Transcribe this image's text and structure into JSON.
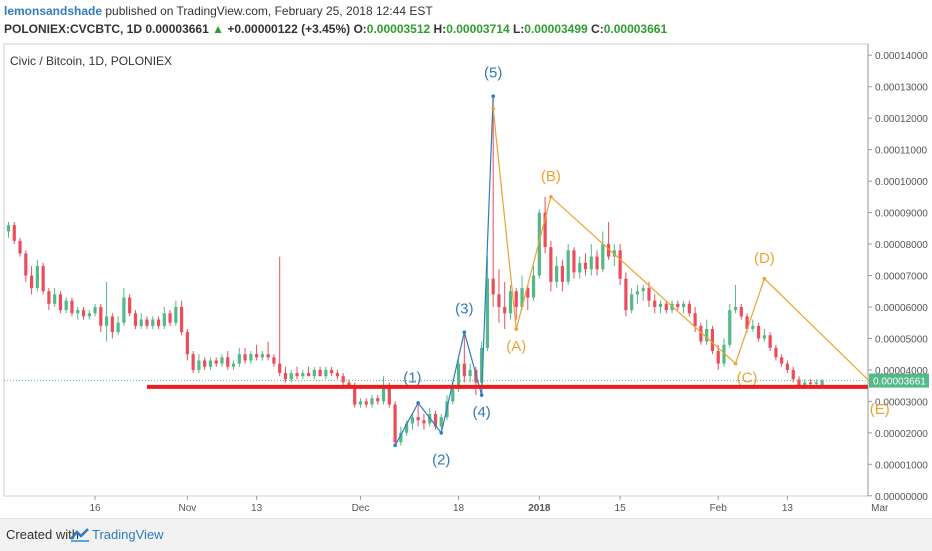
{
  "header": {
    "author": "lemonsandshade",
    "published": "published on TradingView.com, February 25, 2018 12:44 EST",
    "symbol": "POLONIEX:CVCBTC, 1D",
    "last": "0.00003661",
    "change": "+0.00000122 (+3.45%)",
    "o_label": "O:",
    "o": "0.00003512",
    "h_label": "H:",
    "h": "0.00003714",
    "l_label": "L:",
    "l": "0.00003499",
    "c_label": "C:",
    "c": "0.00003661"
  },
  "footer": {
    "created": "Created with",
    "brand": "TradingView"
  },
  "chart_data": {
    "type": "candlestick",
    "title": "Civic / Bitcoin, 1D, POLONIEX",
    "ylim": [
      -7e-08,
      0.00014357
    ],
    "y_ticks": [
      "0.00014000",
      "0.00013000",
      "0.00012000",
      "0.00011000",
      "0.00010000",
      "0.00009000",
      "0.00008000",
      "0.00007000",
      "0.00006000",
      "0.00005000",
      "0.00004000",
      "0.00003000",
      "0.00002000",
      "0.00001000",
      "0.00000000"
    ],
    "x_ticks": [
      {
        "label": "16",
        "day": 15
      },
      {
        "label": "Nov",
        "day": 31
      },
      {
        "label": "13",
        "day": 43
      },
      {
        "label": "Dec",
        "day": 61
      },
      {
        "label": "18",
        "day": 78
      },
      {
        "label": "2018",
        "day": 92
      },
      {
        "label": "15",
        "day": 106
      },
      {
        "label": "Feb",
        "day": 123
      },
      {
        "label": "13",
        "day": 135
      },
      {
        "label": "Mar",
        "day": 151
      }
    ],
    "last_price_label": "0.00003661",
    "colors": {
      "up": "#53b987",
      "down": "#eb4d5c",
      "blue_wave": "#2f7bbf",
      "orange_wave": "#f0a030",
      "support": "#ee1c1c"
    },
    "support_level": 3.46e-05,
    "candles": [
      [
        8.4e-05,
        8.7e-05,
        8.2e-05,
        8.6e-05
      ],
      [
        8.6e-05,
        8.7e-05,
        8e-05,
        8.1e-05
      ],
      [
        8.1e-05,
        8.2e-05,
        7.6e-05,
        7.7e-05
      ],
      [
        7.7e-05,
        7.8e-05,
        6.8e-05,
        7e-05
      ],
      [
        7e-05,
        7.3e-05,
        6.4e-05,
        6.6e-05
      ],
      [
        6.6e-05,
        7.5e-05,
        6.5e-05,
        7.3e-05
      ],
      [
        7.3e-05,
        7.4e-05,
        6.4e-05,
        6.5e-05
      ],
      [
        6.5e-05,
        6.6e-05,
        5.9e-05,
        6.1e-05
      ],
      [
        6.1e-05,
        6.6e-05,
        6e-05,
        6.4e-05
      ],
      [
        6.4e-05,
        6.5e-05,
        5.8e-05,
        5.9e-05
      ],
      [
        5.9e-05,
        6.3e-05,
        5.8e-05,
        6.2e-05
      ],
      [
        6.2e-05,
        6.3e-05,
        5.7e-05,
        5.8e-05
      ],
      [
        5.8e-05,
        6e-05,
        5.6e-05,
        5.9e-05
      ],
      [
        5.9e-05,
        6e-05,
        5.6e-05,
        5.7e-05
      ],
      [
        5.7e-05,
        5.9e-05,
        5.6e-05,
        5.8e-05
      ],
      [
        5.8e-05,
        6.1e-05,
        5.7e-05,
        6e-05
      ],
      [
        6e-05,
        6.1e-05,
        5.2e-05,
        5.4e-05
      ],
      [
        5.4e-05,
        6.8e-05,
        4.9e-05,
        5.7e-05
      ],
      [
        5.7e-05,
        5.8e-05,
        5e-05,
        5.2e-05
      ],
      [
        5.2e-05,
        5.7e-05,
        5.1e-05,
        5.5e-05
      ],
      [
        5.5e-05,
        6.6e-05,
        5.4e-05,
        6.3e-05
      ],
      [
        6.3e-05,
        6.4e-05,
        5.7e-05,
        5.8e-05
      ],
      [
        5.8e-05,
        5.9e-05,
        5.3e-05,
        5.4e-05
      ],
      [
        5.4e-05,
        5.8e-05,
        5.3e-05,
        5.6e-05
      ],
      [
        5.6e-05,
        5.7e-05,
        5.3e-05,
        5.4e-05
      ],
      [
        5.4e-05,
        5.7e-05,
        5.3e-05,
        5.6e-05
      ],
      [
        5.6e-05,
        5.7e-05,
        5.3e-05,
        5.4e-05
      ],
      [
        5.4e-05,
        6e-05,
        5.3e-05,
        5.8e-05
      ],
      [
        5.8e-05,
        5.9e-05,
        5.4e-05,
        5.5e-05
      ],
      [
        5.5e-05,
        6.2e-05,
        5.4e-05,
        6e-05
      ],
      [
        6e-05,
        6.2e-05,
        5.1e-05,
        5.2e-05
      ],
      [
        5.2e-05,
        5.3e-05,
        4.3e-05,
        4.5e-05
      ],
      [
        4.5e-05,
        4.6e-05,
        3.9e-05,
        4e-05
      ],
      [
        4e-05,
        4.5e-05,
        3.9e-05,
        4.3e-05
      ],
      [
        4.3e-05,
        4.4e-05,
        4e-05,
        4.1e-05
      ],
      [
        4.1e-05,
        4.4e-05,
        4e-05,
        4.3e-05
      ],
      [
        4.3e-05,
        4.4e-05,
        4.1e-05,
        4.2e-05
      ],
      [
        4.2e-05,
        4.5e-05,
        4.1e-05,
        4.4e-05
      ],
      [
        4.4e-05,
        4.6e-05,
        4e-05,
        4.1e-05
      ],
      [
        4.1e-05,
        4.3e-05,
        4e-05,
        4.2e-05
      ],
      [
        4.2e-05,
        4.7e-05,
        4.1e-05,
        4.5e-05
      ],
      [
        4.5e-05,
        4.7e-05,
        4.2e-05,
        4.3e-05
      ],
      [
        4.3e-05,
        4.6e-05,
        4.2e-05,
        4.5e-05
      ],
      [
        4.5e-05,
        4.8e-05,
        4.3e-05,
        4.4e-05
      ],
      [
        4.4e-05,
        4.6e-05,
        4.3e-05,
        4.5e-05
      ],
      [
        4.5e-05,
        4.9e-05,
        4.3e-05,
        4.4e-05
      ],
      [
        4.4e-05,
        4.5e-05,
        4.1e-05,
        4.2e-05
      ],
      [
        4.2e-05,
        7.6e-05,
        3.8e-05,
        3.9e-05
      ],
      [
        3.9e-05,
        4.1e-05,
        3.6e-05,
        3.7e-05
      ],
      [
        3.7e-05,
        4e-05,
        3.6e-05,
        3.9e-05
      ],
      [
        3.9e-05,
        4.1e-05,
        3.7e-05,
        3.8e-05
      ],
      [
        3.8e-05,
        4e-05,
        3.7e-05,
        3.9e-05
      ],
      [
        3.9e-05,
        4.1e-05,
        3.8e-05,
        3.8e-05
      ],
      [
        3.8e-05,
        4.1e-05,
        3.7e-05,
        4e-05
      ],
      [
        4e-05,
        4.1e-05,
        3.8e-05,
        3.8e-05
      ],
      [
        3.8e-05,
        4.1e-05,
        3.7e-05,
        4e-05
      ],
      [
        4e-05,
        4.1e-05,
        3.8e-05,
        3.9e-05
      ],
      [
        3.9e-05,
        4e-05,
        3.7e-05,
        3.8e-05
      ],
      [
        3.8e-05,
        3.9e-05,
        3.5e-05,
        3.6e-05
      ],
      [
        3.6e-05,
        3.7e-05,
        3.4e-05,
        3.5e-05
      ],
      [
        3.5e-05,
        3.6e-05,
        2.8e-05,
        2.9e-05
      ],
      [
        2.9e-05,
        3.1e-05,
        2.8e-05,
        3e-05
      ],
      [
        3e-05,
        3.1e-05,
        2.8e-05,
        2.9e-05
      ],
      [
        2.9e-05,
        3.2e-05,
        2.8e-05,
        3.1e-05
      ],
      [
        3.1e-05,
        3.2e-05,
        2.9e-05,
        3e-05
      ],
      [
        3e-05,
        3.8e-05,
        2.9e-05,
        3.5e-05
      ],
      [
        3.5e-05,
        3.6e-05,
        2.8e-05,
        2.9e-05
      ],
      [
        2.9e-05,
        3e-05,
        1.6e-05,
        1.7e-05
      ],
      [
        1.7e-05,
        2.2e-05,
        1.6e-05,
        2e-05
      ],
      [
        2e-05,
        2.4e-05,
        1.9e-05,
        2.3e-05
      ],
      [
        2.3e-05,
        2.6e-05,
        2.1e-05,
        2.5e-05
      ],
      [
        2.5e-05,
        3e-05,
        2.2e-05,
        2.4e-05
      ],
      [
        2.4e-05,
        2.6e-05,
        2.1e-05,
        2.3e-05
      ],
      [
        2.3e-05,
        2.8e-05,
        2.2e-05,
        2.6e-05
      ],
      [
        2.6e-05,
        2.7e-05,
        2.1e-05,
        2.2e-05
      ],
      [
        2.2e-05,
        2.6e-05,
        2.1e-05,
        2.5e-05
      ],
      [
        2.5e-05,
        3.2e-05,
        2.4e-05,
        3e-05
      ],
      [
        3e-05,
        3.6e-05,
        2.9e-05,
        3.4e-05
      ],
      [
        3.4e-05,
        4.4e-05,
        3.3e-05,
        4.2e-05
      ],
      [
        4.2e-05,
        5.2e-05,
        3.6e-05,
        3.8e-05
      ],
      [
        3.8e-05,
        4.2e-05,
        3.6e-05,
        4e-05
      ],
      [
        4e-05,
        4.1e-05,
        3.2e-05,
        3.6e-05
      ],
      [
        3.6e-05,
        4.9e-05,
        3.5e-05,
        4.7e-05
      ],
      [
        4.7e-05,
        7.6e-05,
        4.6e-05,
        6.9e-05
      ],
      [
        6.9e-05,
        0.000127,
        6e-05,
        6.4e-05
      ],
      [
        6.4e-05,
        7.2e-05,
        5.5e-05,
        6e-05
      ],
      [
        6e-05,
        6.8e-05,
        5.3e-05,
        5.8e-05
      ],
      [
        5.8e-05,
        6.7e-05,
        5.6e-05,
        6.5e-05
      ],
      [
        6.5e-05,
        6.6e-05,
        5.6e-05,
        6e-05
      ],
      [
        6e-05,
        7e-05,
        5.9e-05,
        6.6e-05
      ],
      [
        6.6e-05,
        6.7e-05,
        5.9e-05,
        6.3e-05
      ],
      [
        6.3e-05,
        7.3e-05,
        6.2e-05,
        7e-05
      ],
      [
        7e-05,
        9.1e-05,
        6.9e-05,
        9e-05
      ],
      [
        9e-05,
        9.5e-05,
        7.7e-05,
        7.9e-05
      ],
      [
        7.9e-05,
        8.1e-05,
        6.5e-05,
        6.8e-05
      ],
      [
        6.8e-05,
        7.6e-05,
        6.6e-05,
        7.3e-05
      ],
      [
        7.3e-05,
        7.5e-05,
        6.5e-05,
        6.8e-05
      ],
      [
        6.8e-05,
        8e-05,
        6.7e-05,
        7.8e-05
      ],
      [
        7.8e-05,
        7.9e-05,
        6.9e-05,
        7.1e-05
      ],
      [
        7.1e-05,
        7.6e-05,
        6.9e-05,
        7.4e-05
      ],
      [
        7.4e-05,
        7.7e-05,
        7e-05,
        7.2e-05
      ],
      [
        7.2e-05,
        8e-05,
        7e-05,
        7.6e-05
      ],
      [
        7.6e-05,
        7.8e-05,
        7e-05,
        7.2e-05
      ],
      [
        7.2e-05,
        8.4e-05,
        7.1e-05,
        8e-05
      ],
      [
        8e-05,
        8.7e-05,
        7.5e-05,
        7.6e-05
      ],
      [
        7.6e-05,
        8e-05,
        7.3e-05,
        7.8e-05
      ],
      [
        7.8e-05,
        8e-05,
        6.7e-05,
        6.9e-05
      ],
      [
        6.9e-05,
        7.1e-05,
        5.7e-05,
        5.9e-05
      ],
      [
        5.9e-05,
        6.6e-05,
        5.8e-05,
        6.4e-05
      ],
      [
        6.4e-05,
        6.7e-05,
        6.1e-05,
        6.5e-05
      ],
      [
        6.5e-05,
        6.7e-05,
        6.2e-05,
        6.6e-05
      ],
      [
        6.6e-05,
        6.8e-05,
        6e-05,
        6.2e-05
      ],
      [
        6.2e-05,
        6.4e-05,
        5.8e-05,
        6e-05
      ],
      [
        6e-05,
        6.2e-05,
        5.8e-05,
        6.1e-05
      ],
      [
        6.1e-05,
        6.2e-05,
        5.8e-05,
        5.9e-05
      ],
      [
        5.9e-05,
        6.2e-05,
        5.8e-05,
        6.1e-05
      ],
      [
        6.1e-05,
        6.2e-05,
        5.9e-05,
        6e-05
      ],
      [
        6e-05,
        6.2e-05,
        5.8e-05,
        6.1e-05
      ],
      [
        6.1e-05,
        6.2e-05,
        5.7e-05,
        5.8e-05
      ],
      [
        5.8e-05,
        6e-05,
        5.2e-05,
        5.4e-05
      ],
      [
        5.4e-05,
        5.5e-05,
        4.8e-05,
        4.9e-05
      ],
      [
        4.9e-05,
        5.6e-05,
        4.8e-05,
        5.3e-05
      ],
      [
        5.3e-05,
        5.4e-05,
        4.5e-05,
        4.6e-05
      ],
      [
        4.6e-05,
        4.8e-05,
        4e-05,
        4.2e-05
      ],
      [
        4.2e-05,
        5e-05,
        4.1e-05,
        4.8e-05
      ],
      [
        4.8e-05,
        6.1e-05,
        4.7e-05,
        5.9e-05
      ],
      [
        5.9e-05,
        6.7e-05,
        5.8e-05,
        6e-05
      ],
      [
        6e-05,
        6.1e-05,
        5.6e-05,
        5.7e-05
      ],
      [
        5.7e-05,
        5.8e-05,
        5.2e-05,
        5.3e-05
      ],
      [
        5.3e-05,
        5.6e-05,
        5.2e-05,
        5.4e-05
      ],
      [
        5.4e-05,
        5.5e-05,
        4.9e-05,
        5e-05
      ],
      [
        5e-05,
        5.3e-05,
        4.9e-05,
        5.1e-05
      ],
      [
        5.1e-05,
        5.2e-05,
        4.6e-05,
        4.7e-05
      ],
      [
        4.7e-05,
        4.8e-05,
        4.3e-05,
        4.4e-05
      ],
      [
        4.4e-05,
        4.5e-05,
        4.1e-05,
        4.2e-05
      ],
      [
        4.2e-05,
        4.3e-05,
        3.9e-05,
        4e-05
      ],
      [
        4e-05,
        4.1e-05,
        3.6e-05,
        3.7e-05
      ],
      [
        3.7e-05,
        3.8e-05,
        3.4e-05,
        3.5e-05
      ],
      [
        3.5e-05,
        3.7e-05,
        3.4e-05,
        3.6e-05
      ],
      [
        3.6e-05,
        3.7e-05,
        3.5e-05,
        3.55e-05
      ],
      [
        3.55e-05,
        3.7e-05,
        3.5e-05,
        3.6e-05
      ],
      [
        3.51e-05,
        3.71e-05,
        3.5e-05,
        3.66e-05
      ]
    ],
    "waves": [
      {
        "name": "blue",
        "color": "#2f7bbf",
        "points": [
          [
            67,
            1.6e-05
          ],
          [
            71,
            2.95e-05
          ],
          [
            75,
            2e-05
          ],
          [
            79,
            5.2e-05
          ],
          [
            82,
            3.2e-05
          ],
          [
            84,
            0.000127
          ]
        ],
        "labels": [
          {
            "text": "(1)",
            "day": 70,
            "price": 3.6e-05
          },
          {
            "text": "(2)",
            "day": 75,
            "price": 1e-05
          },
          {
            "text": "(3)",
            "day": 79,
            "price": 5.8e-05
          },
          {
            "text": "(4)",
            "day": 82,
            "price": 2.5e-05
          },
          {
            "text": "(5)",
            "day": 84,
            "price": 0.000133
          }
        ]
      },
      {
        "name": "orange",
        "color": "#f0a030",
        "points": [
          [
            84,
            0.000123
          ],
          [
            88,
            5.3e-05
          ],
          [
            94,
            9.5e-05
          ],
          [
            126,
            4.2e-05
          ],
          [
            131,
            6.9e-05
          ],
          [
            150,
            3.5e-05
          ]
        ],
        "labels": [
          {
            "text": "(A)",
            "day": 88,
            "price": 4.6e-05
          },
          {
            "text": "(B)",
            "day": 94,
            "price": 0.0001
          },
          {
            "text": "(C)",
            "day": 128,
            "price": 3.6e-05
          },
          {
            "text": "(D)",
            "day": 131,
            "price": 7.4e-05
          },
          {
            "text": "(E)",
            "day": 151,
            "price": 2.6e-05
          }
        ]
      }
    ]
  }
}
